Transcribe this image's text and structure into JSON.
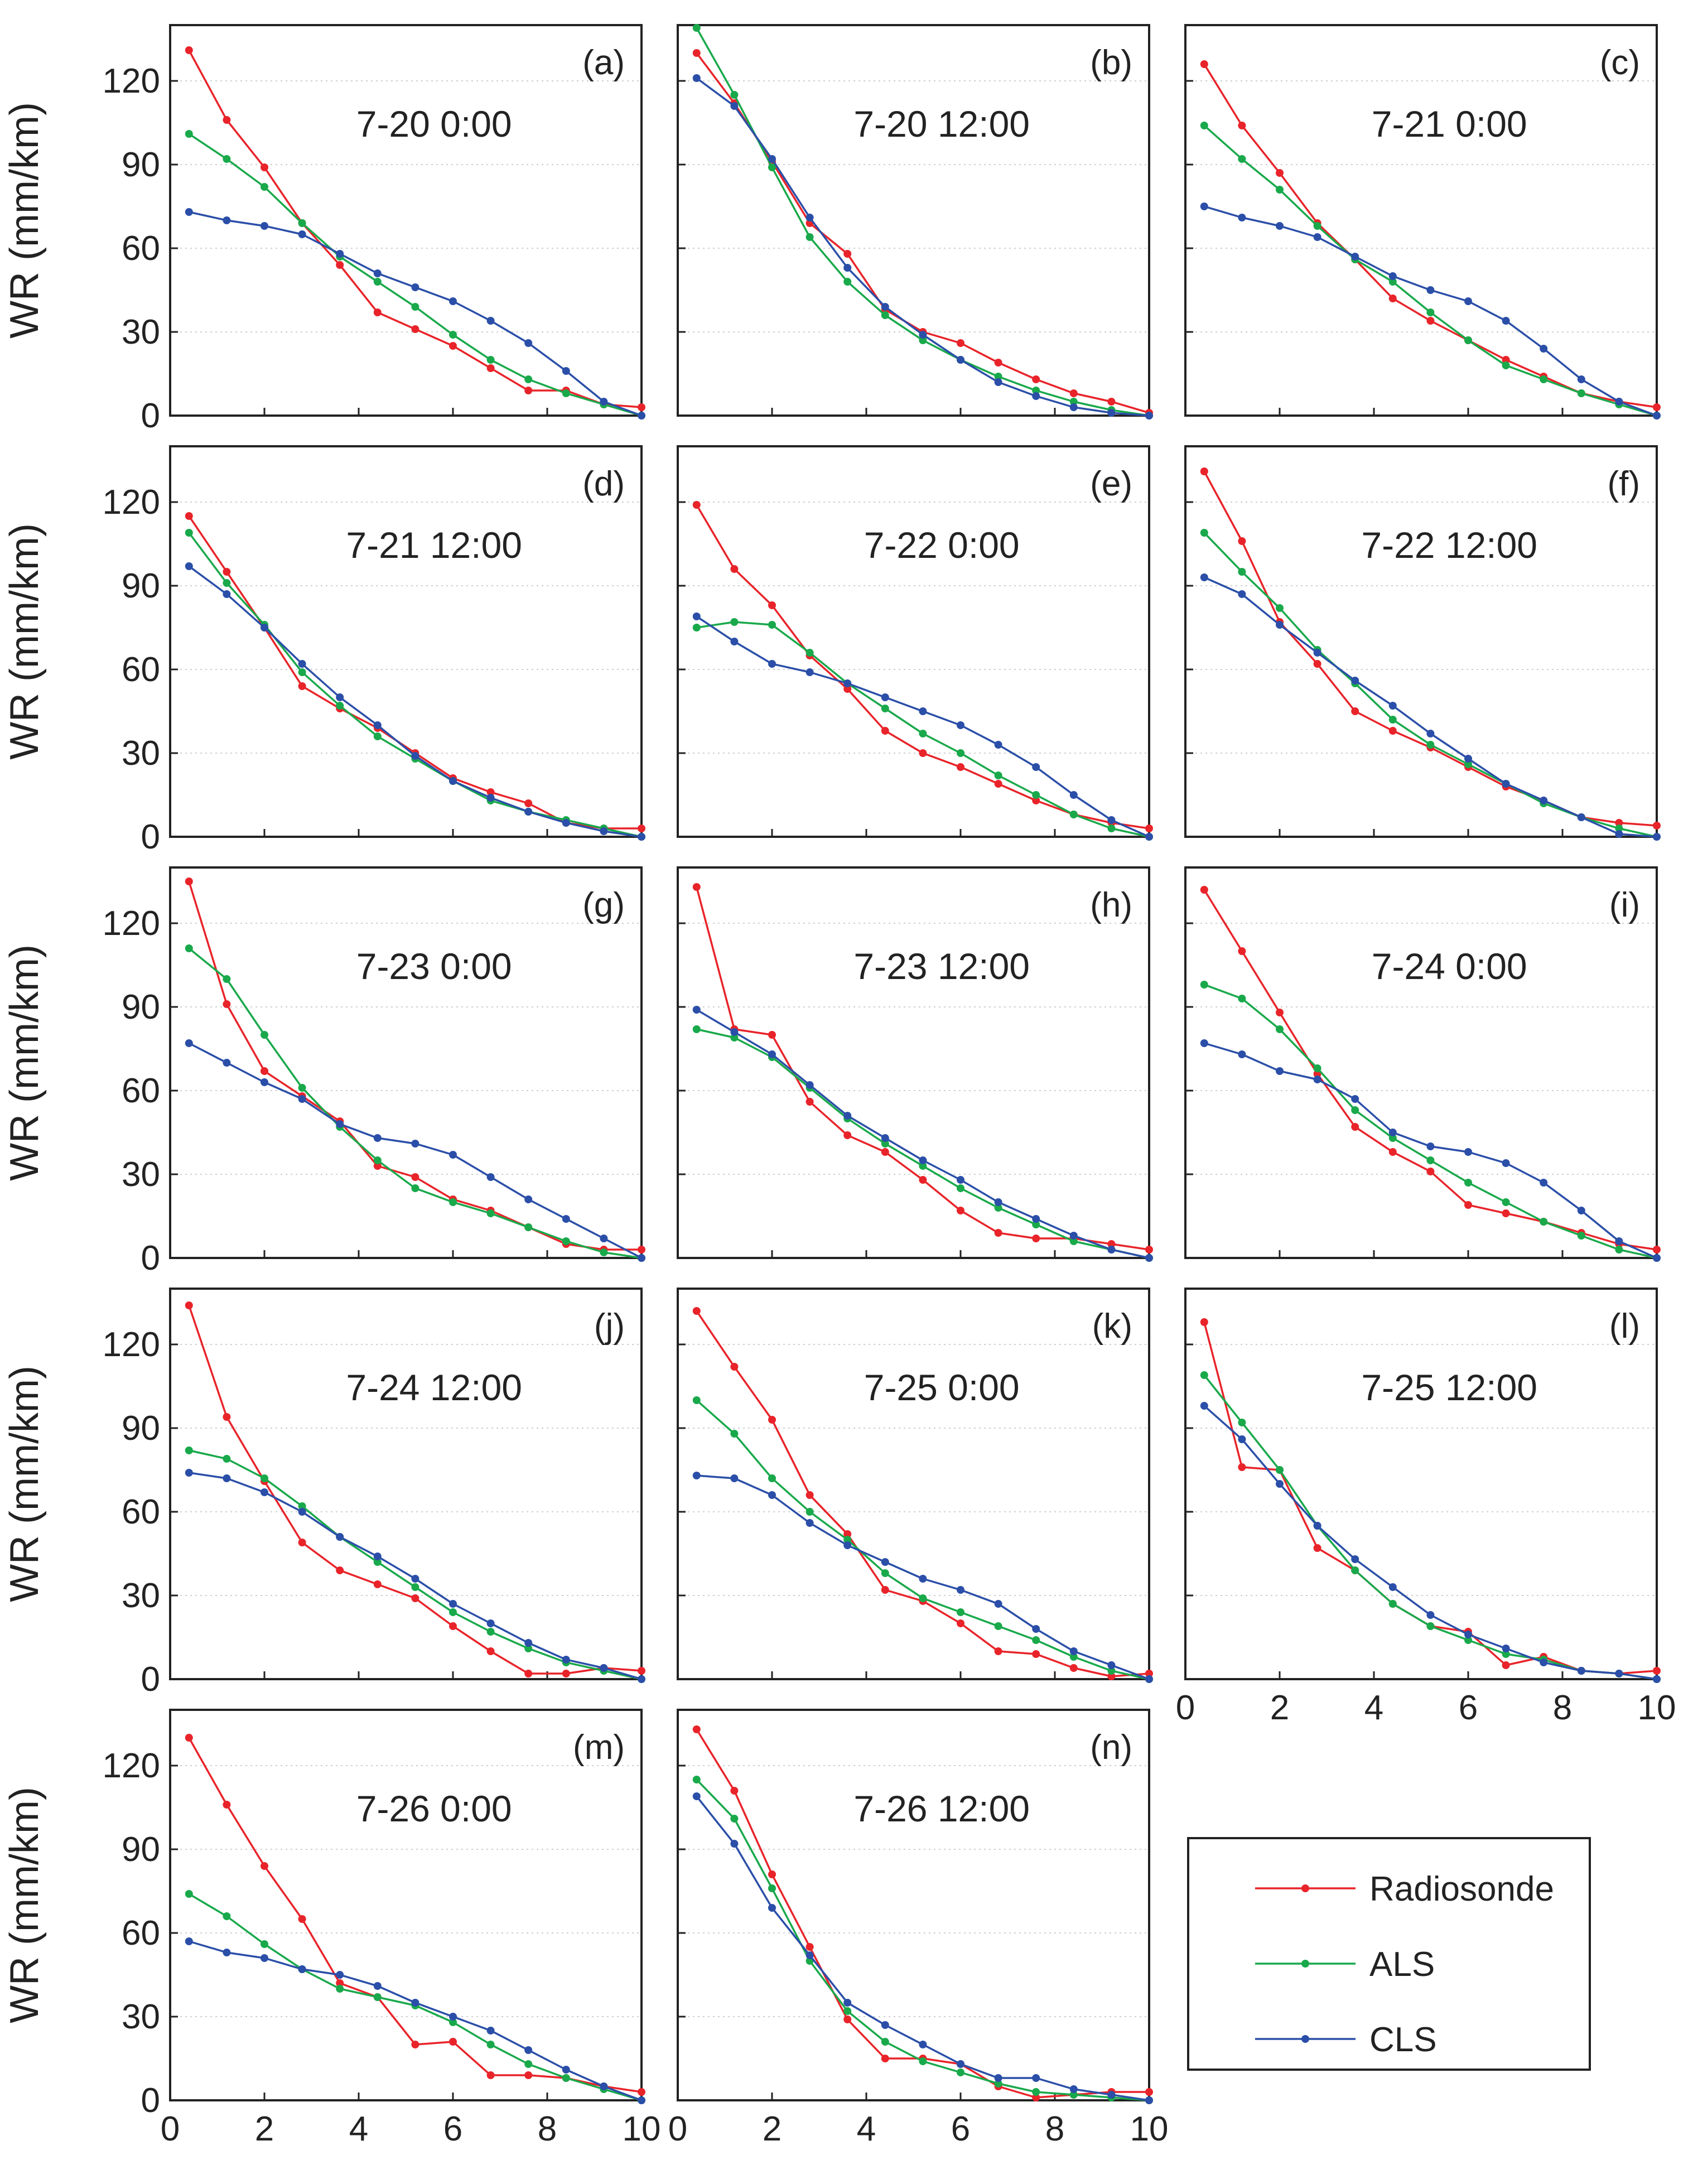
{
  "chart_data": {
    "type": "line",
    "layout": "grid-5x3",
    "x": [
      0.4,
      1.2,
      2.0,
      2.8,
      3.6,
      4.4,
      5.2,
      6.0,
      6.8,
      7.6,
      8.4,
      9.2,
      10.0
    ],
    "xlim": [
      0,
      10
    ],
    "ylim": [
      0,
      140
    ],
    "xticks": [
      0,
      2,
      4,
      6,
      8,
      10
    ],
    "yticks": [
      0,
      30,
      60,
      90,
      120
    ],
    "ylabel": "WR (mm/km)",
    "grid": "dotted horizontal",
    "colors": {
      "Radiosonde": "#e8242a",
      "ALS": "#19a94b",
      "CLS": "#2b4fa8"
    },
    "legend": {
      "placement": "bottom-right",
      "entries": [
        "Radiosonde",
        "ALS",
        "CLS"
      ]
    },
    "panels": [
      {
        "letter": "(a)",
        "title": "7-20 0:00",
        "series": [
          {
            "name": "Radiosonde",
            "values": [
              131,
              106,
              89,
              69,
              54,
              37,
              31,
              25,
              17,
              9,
              9,
              4,
              3
            ]
          },
          {
            "name": "ALS",
            "values": [
              101,
              92,
              82,
              69,
              57,
              48,
              39,
              29,
              20,
              13,
              8,
              4,
              0
            ]
          },
          {
            "name": "CLS",
            "values": [
              73,
              70,
              68,
              65,
              58,
              51,
              46,
              41,
              34,
              26,
              16,
              5,
              0
            ]
          }
        ]
      },
      {
        "letter": "(b)",
        "title": "7-20 12:00",
        "series": [
          {
            "name": "Radiosonde",
            "values": [
              130,
              112,
              91,
              69,
              58,
              38,
              30,
              26,
              19,
              13,
              8,
              5,
              1
            ]
          },
          {
            "name": "ALS",
            "values": [
              139,
              115,
              89,
              64,
              48,
              36,
              27,
              20,
              14,
              9,
              5,
              2,
              0
            ]
          },
          {
            "name": "CLS",
            "values": [
              121,
              111,
              92,
              71,
              53,
              39,
              29,
              20,
              12,
              7,
              3,
              1,
              0
            ]
          }
        ]
      },
      {
        "letter": "(c)",
        "title": "7-21 0:00",
        "series": [
          {
            "name": "Radiosonde",
            "values": [
              126,
              104,
              87,
              69,
              56,
              42,
              34,
              27,
              20,
              14,
              8,
              5,
              3
            ]
          },
          {
            "name": "ALS",
            "values": [
              104,
              92,
              81,
              68,
              56,
              48,
              37,
              27,
              18,
              13,
              8,
              4,
              0
            ]
          },
          {
            "name": "CLS",
            "values": [
              75,
              71,
              68,
              64,
              57,
              50,
              45,
              41,
              34,
              24,
              13,
              5,
              0
            ]
          }
        ]
      },
      {
        "letter": "(d)",
        "title": "7-21 12:00",
        "series": [
          {
            "name": "Radiosonde",
            "values": [
              115,
              95,
              75,
              54,
              46,
              39,
              30,
              21,
              16,
              12,
              5,
              3,
              3
            ]
          },
          {
            "name": "ALS",
            "values": [
              109,
              91,
              76,
              59,
              47,
              36,
              28,
              20,
              13,
              9,
              6,
              3,
              0
            ]
          },
          {
            "name": "CLS",
            "values": [
              97,
              87,
              75,
              62,
              50,
              40,
              29,
              20,
              14,
              9,
              5,
              2,
              0
            ]
          }
        ]
      },
      {
        "letter": "(e)",
        "title": "7-22 0:00",
        "series": [
          {
            "name": "Radiosonde",
            "values": [
              119,
              96,
              83,
              65,
              53,
              38,
              30,
              25,
              19,
              13,
              8,
              5,
              3
            ]
          },
          {
            "name": "ALS",
            "values": [
              75,
              77,
              76,
              66,
              55,
              46,
              37,
              30,
              22,
              15,
              8,
              3,
              0
            ]
          },
          {
            "name": "CLS",
            "values": [
              79,
              70,
              62,
              59,
              55,
              50,
              45,
              40,
              33,
              25,
              15,
              6,
              0
            ]
          }
        ]
      },
      {
        "letter": "(f)",
        "title": "7-22 12:00",
        "series": [
          {
            "name": "Radiosonde",
            "values": [
              131,
              106,
              77,
              62,
              45,
              38,
              32,
              25,
              18,
              13,
              7,
              5,
              4
            ]
          },
          {
            "name": "ALS",
            "values": [
              109,
              95,
              82,
              67,
              55,
              42,
              33,
              26,
              19,
              12,
              7,
              3,
              0
            ]
          },
          {
            "name": "CLS",
            "values": [
              93,
              87,
              76,
              66,
              56,
              47,
              37,
              28,
              19,
              13,
              7,
              1,
              0
            ]
          }
        ]
      },
      {
        "letter": "(g)",
        "title": "7-23 0:00",
        "series": [
          {
            "name": "Radiosonde",
            "values": [
              135,
              91,
              67,
              58,
              49,
              33,
              29,
              21,
              17,
              11,
              5,
              3,
              3
            ]
          },
          {
            "name": "ALS",
            "values": [
              111,
              100,
              80,
              61,
              47,
              35,
              25,
              20,
              16,
              11,
              6,
              2,
              0
            ]
          },
          {
            "name": "CLS",
            "values": [
              77,
              70,
              63,
              57,
              48,
              43,
              41,
              37,
              29,
              21,
              14,
              7,
              0
            ]
          }
        ]
      },
      {
        "letter": "(h)",
        "title": "7-23 12:00",
        "series": [
          {
            "name": "Radiosonde",
            "values": [
              133,
              82,
              80,
              56,
              44,
              38,
              28,
              17,
              9,
              7,
              7,
              5,
              3
            ]
          },
          {
            "name": "ALS",
            "values": [
              82,
              79,
              72,
              61,
              50,
              41,
              33,
              25,
              18,
              12,
              6,
              3,
              0
            ]
          },
          {
            "name": "CLS",
            "values": [
              89,
              81,
              73,
              62,
              51,
              43,
              35,
              28,
              20,
              14,
              8,
              3,
              0
            ]
          }
        ]
      },
      {
        "letter": "(i)",
        "title": "7-24 0:00",
        "series": [
          {
            "name": "Radiosonde",
            "values": [
              132,
              110,
              88,
              66,
              47,
              38,
              31,
              19,
              16,
              13,
              9,
              5,
              3
            ]
          },
          {
            "name": "ALS",
            "values": [
              98,
              93,
              82,
              68,
              53,
              43,
              35,
              27,
              20,
              13,
              8,
              3,
              0
            ]
          },
          {
            "name": "CLS",
            "values": [
              77,
              73,
              67,
              64,
              57,
              45,
              40,
              38,
              34,
              27,
              17,
              6,
              0
            ]
          }
        ]
      },
      {
        "letter": "(j)",
        "title": "7-24 12:00",
        "series": [
          {
            "name": "Radiosonde",
            "values": [
              134,
              94,
              71,
              49,
              39,
              34,
              29,
              19,
              10,
              2,
              2,
              4,
              3
            ]
          },
          {
            "name": "ALS",
            "values": [
              82,
              79,
              72,
              62,
              51,
              42,
              33,
              24,
              17,
              11,
              6,
              3,
              0
            ]
          },
          {
            "name": "CLS",
            "values": [
              74,
              72,
              67,
              60,
              51,
              44,
              36,
              27,
              20,
              13,
              7,
              4,
              0
            ]
          }
        ]
      },
      {
        "letter": "(k)",
        "title": "7-25 0:00",
        "series": [
          {
            "name": "Radiosonde",
            "values": [
              132,
              112,
              93,
              66,
              52,
              32,
              28,
              20,
              10,
              9,
              4,
              1,
              2
            ]
          },
          {
            "name": "ALS",
            "values": [
              100,
              88,
              72,
              60,
              50,
              38,
              29,
              24,
              19,
              14,
              8,
              3,
              0
            ]
          },
          {
            "name": "CLS",
            "values": [
              73,
              72,
              66,
              56,
              48,
              42,
              36,
              32,
              27,
              18,
              10,
              5,
              0
            ]
          }
        ]
      },
      {
        "letter": "(l)",
        "title": "7-25 12:00",
        "series": [
          {
            "name": "Radiosonde",
            "values": [
              128,
              76,
              75,
              47,
              39,
              27,
              19,
              17,
              5,
              8,
              3,
              2,
              3
            ]
          },
          {
            "name": "ALS",
            "values": [
              109,
              92,
              75,
              55,
              39,
              27,
              19,
              14,
              9,
              7,
              3,
              2,
              0
            ]
          },
          {
            "name": "CLS",
            "values": [
              98,
              86,
              70,
              55,
              43,
              33,
              23,
              16,
              11,
              6,
              3,
              2,
              0
            ]
          }
        ]
      },
      {
        "letter": "(m)",
        "title": "7-26 0:00",
        "series": [
          {
            "name": "Radiosonde",
            "values": [
              130,
              106,
              84,
              65,
              42,
              37,
              20,
              21,
              9,
              9,
              8,
              5,
              3
            ]
          },
          {
            "name": "ALS",
            "values": [
              74,
              66,
              56,
              47,
              40,
              37,
              34,
              28,
              20,
              13,
              8,
              4,
              0
            ]
          },
          {
            "name": "CLS",
            "values": [
              57,
              53,
              51,
              47,
              45,
              41,
              35,
              30,
              25,
              18,
              11,
              5,
              0
            ]
          }
        ]
      },
      {
        "letter": "(n)",
        "title": "7-26 12:00",
        "series": [
          {
            "name": "Radiosonde",
            "values": [
              133,
              111,
              81,
              55,
              29,
              15,
              15,
              13,
              5,
              1,
              2,
              3,
              3
            ]
          },
          {
            "name": "ALS",
            "values": [
              115,
              101,
              76,
              50,
              32,
              21,
              14,
              10,
              6,
              3,
              2,
              1,
              0
            ]
          },
          {
            "name": "CLS",
            "values": [
              109,
              92,
              69,
              52,
              35,
              27,
              20,
              13,
              8,
              8,
              4,
              2,
              0
            ]
          }
        ]
      }
    ]
  }
}
